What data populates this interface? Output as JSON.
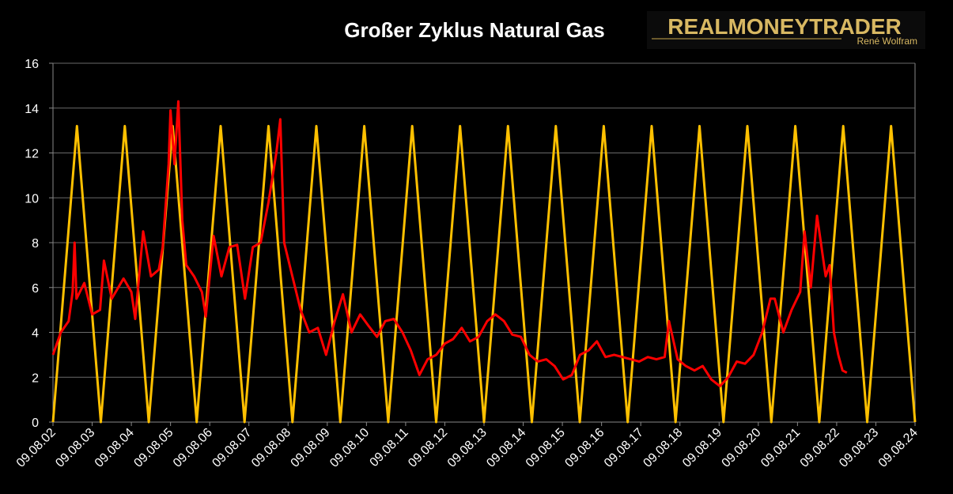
{
  "chart_data": {
    "type": "line",
    "title": "Großer Zyklus Natural Gas",
    "logo": {
      "name": "REALMONEYTRADER",
      "author": "René Wolfram"
    },
    "xlim": [
      0,
      22
    ],
    "xticks": [
      {
        "value": 0,
        "label": "09.08.02"
      },
      {
        "value": 1,
        "label": "09.08.03"
      },
      {
        "value": 2,
        "label": "09.08.04"
      },
      {
        "value": 3,
        "label": "09.08.05"
      },
      {
        "value": 4,
        "label": "09.08.06"
      },
      {
        "value": 5,
        "label": "09.08.07"
      },
      {
        "value": 6,
        "label": "09.08.08"
      },
      {
        "value": 7,
        "label": "09.08.09"
      },
      {
        "value": 8,
        "label": "09.08.10"
      },
      {
        "value": 9,
        "label": "09.08.11"
      },
      {
        "value": 10,
        "label": "09.08.12"
      },
      {
        "value": 11,
        "label": "09.08.13"
      },
      {
        "value": 12,
        "label": "09.08.14"
      },
      {
        "value": 13,
        "label": "09.08.15"
      },
      {
        "value": 14,
        "label": "09.08.16"
      },
      {
        "value": 15,
        "label": "09.08.17"
      },
      {
        "value": 16,
        "label": "09.08.18"
      },
      {
        "value": 17,
        "label": "09.08.19"
      },
      {
        "value": 18,
        "label": "09.08.20"
      },
      {
        "value": 19,
        "label": "09.08.21"
      },
      {
        "value": 20,
        "label": "09.08.22"
      },
      {
        "value": 21,
        "label": "09.08.23"
      },
      {
        "value": 22,
        "label": "09.08.24"
      }
    ],
    "ylim": [
      0,
      16
    ],
    "yticks": [
      0,
      2,
      4,
      6,
      8,
      10,
      12,
      14,
      16
    ],
    "grid": true,
    "series": [
      {
        "color": "#ffc000",
        "x": [
          0,
          0.611,
          1.222,
          1.833,
          2.444,
          3.056,
          3.667,
          4.278,
          4.889,
          5.5,
          6.111,
          6.722,
          7.333,
          7.944,
          8.556,
          9.167,
          9.778,
          10.389,
          11,
          11.611,
          12.222,
          12.833,
          13.444,
          14.056,
          14.667,
          15.278,
          15.889,
          16.5,
          17.111,
          17.722,
          18.333,
          18.944,
          19.556,
          20.167,
          20.778,
          21.389,
          22
        ],
        "values": [
          0,
          13.2,
          0,
          13.2,
          0,
          13.2,
          0,
          13.2,
          0,
          13.2,
          0,
          13.2,
          0,
          13.2,
          0,
          13.2,
          0,
          13.2,
          0,
          13.2,
          0,
          13.2,
          0,
          13.2,
          0,
          13.2,
          0,
          13.2,
          0,
          13.2,
          0,
          13.2,
          0,
          13.2,
          0,
          13.2,
          0
        ]
      },
      {
        "color": "#ff0000",
        "x": [
          0,
          0.2,
          0.4,
          0.5,
          0.55,
          0.6,
          0.8,
          1.0,
          1.2,
          1.3,
          1.5,
          1.8,
          2.0,
          2.1,
          2.3,
          2.5,
          2.7,
          2.8,
          2.95,
          3.0,
          3.1,
          3.2,
          3.3,
          3.4,
          3.6,
          3.8,
          3.9,
          4.1,
          4.3,
          4.5,
          4.7,
          4.9,
          5.1,
          5.3,
          5.5,
          5.7,
          5.8,
          5.9,
          6.11,
          6.32,
          6.54,
          6.76,
          6.97,
          7.19,
          7.4,
          7.62,
          7.84,
          8.05,
          8.27,
          8.48,
          8.7,
          8.92,
          9.13,
          9.35,
          9.56,
          9.78,
          10.0,
          10.21,
          10.43,
          10.64,
          10.86,
          11.08,
          11.29,
          11.51,
          11.72,
          11.94,
          12.16,
          12.37,
          12.59,
          12.8,
          13.02,
          13.24,
          13.45,
          13.67,
          13.88,
          14.1,
          14.32,
          14.53,
          14.75,
          14.96,
          15.18,
          15.4,
          15.61,
          15.72,
          15.94,
          16.15,
          16.37,
          16.58,
          16.8,
          17.02,
          17.23,
          17.45,
          17.66,
          17.88,
          18.1,
          18.31,
          18.42,
          18.64,
          18.85,
          19.07,
          19.18,
          19.34,
          19.5,
          19.72,
          19.82,
          19.93,
          20.04,
          20.15,
          20.26
        ],
        "values": [
          3.0,
          4.0,
          4.5,
          5.8,
          8.0,
          5.5,
          6.2,
          4.8,
          5.0,
          7.2,
          5.5,
          6.4,
          5.8,
          4.6,
          8.5,
          6.5,
          6.8,
          7.8,
          11.5,
          13.9,
          11.5,
          14.3,
          9.0,
          7.0,
          6.5,
          5.8,
          4.7,
          8.3,
          6.5,
          7.8,
          7.9,
          5.5,
          7.8,
          8.0,
          9.8,
          12.0,
          13.5,
          8.0,
          6.5,
          5.0,
          4.0,
          4.2,
          3.0,
          4.5,
          5.7,
          4.0,
          4.8,
          4.3,
          3.8,
          4.5,
          4.6,
          4.0,
          3.2,
          2.1,
          2.8,
          3.0,
          3.5,
          3.7,
          4.2,
          3.6,
          3.8,
          4.5,
          4.8,
          4.5,
          3.9,
          3.8,
          3.0,
          2.7,
          2.8,
          2.5,
          1.9,
          2.1,
          3.0,
          3.2,
          3.6,
          2.9,
          3.0,
          2.9,
          2.8,
          2.7,
          2.9,
          2.8,
          2.9,
          4.5,
          2.8,
          2.5,
          2.3,
          2.5,
          1.9,
          1.6,
          2.0,
          2.7,
          2.6,
          3.0,
          4.0,
          5.5,
          5.5,
          4.0,
          5.0,
          5.8,
          8.5,
          6.0,
          9.2,
          6.5,
          7.0,
          4.0,
          3.0,
          2.3,
          2.2
        ]
      }
    ]
  }
}
